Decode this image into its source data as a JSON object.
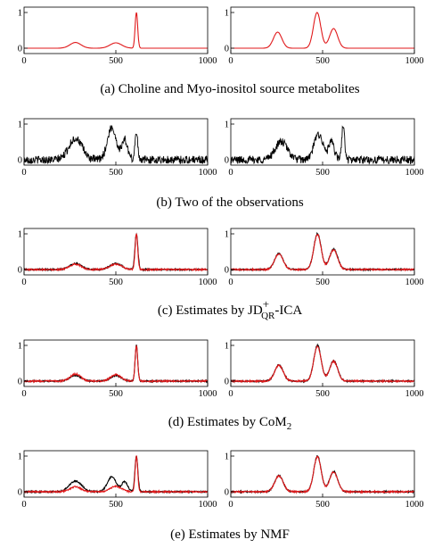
{
  "colors": {
    "source": "#e0191b",
    "observation": "#000000",
    "estimate": "#e0191b",
    "frame": "#000000"
  },
  "x_ticks": [
    "0",
    "500",
    "1000"
  ],
  "y_ticks": [
    "0",
    "1"
  ],
  "captions": {
    "a": "(a) Choline and Myo-inositol source metabolites",
    "b": "(b) Two of the observations",
    "c_prefix": "(c) Estimates by JD",
    "c_sup": "+",
    "c_sub": "QR",
    "c_suffix": "-ICA",
    "d_prefix": "(d) Estimates by CoM",
    "d_sub": "2",
    "e": "(e) Estimates by NMF"
  },
  "chart_data": [
    {
      "id": "a-left",
      "type": "line",
      "xlim": [
        0,
        1000
      ],
      "ylim": [
        0,
        1
      ],
      "noise": 0,
      "series": [
        {
          "color": "#e0191b",
          "peaks": [
            [
              280,
              0.16,
              30
            ],
            [
              500,
              0.15,
              32
            ],
            [
              612,
              1.0,
              7
            ]
          ]
        }
      ]
    },
    {
      "id": "a-right",
      "type": "line",
      "xlim": [
        0,
        1000
      ],
      "ylim": [
        0,
        1
      ],
      "noise": 0,
      "series": [
        {
          "color": "#e0191b",
          "peaks": [
            [
              255,
              0.45,
              23
            ],
            [
              470,
              1.0,
              20
            ],
            [
              560,
              0.55,
              22
            ]
          ]
        }
      ]
    },
    {
      "id": "b-left",
      "type": "line",
      "xlim": [
        0,
        1000
      ],
      "ylim": [
        0,
        1
      ],
      "noise": 0.11,
      "series": [
        {
          "color": "#000000",
          "peaks": [
            [
              280,
              0.6,
              36
            ],
            [
              478,
              0.9,
              24
            ],
            [
              548,
              0.55,
              16
            ],
            [
              612,
              0.72,
              8
            ]
          ]
        }
      ]
    },
    {
      "id": "b-right",
      "type": "line",
      "xlim": [
        0,
        1000
      ],
      "ylim": [
        0,
        1
      ],
      "noise": 0.11,
      "series": [
        {
          "color": "#000000",
          "peaks": [
            [
              275,
              0.5,
              34
            ],
            [
              478,
              0.72,
              24
            ],
            [
              548,
              0.48,
              16
            ],
            [
              612,
              0.95,
              8
            ]
          ]
        }
      ]
    },
    {
      "id": "c-left",
      "type": "line",
      "xlim": [
        0,
        1000
      ],
      "ylim": [
        0,
        1
      ],
      "noise": 0.02,
      "series": [
        {
          "color": "#000000",
          "peaks": [
            [
              280,
              0.17,
              32
            ],
            [
              500,
              0.17,
              32
            ],
            [
              612,
              1.0,
              8
            ]
          ]
        },
        {
          "color": "#e0191b",
          "peaks": [
            [
              280,
              0.15,
              30
            ],
            [
              500,
              0.15,
              32
            ],
            [
              612,
              1.0,
              7
            ]
          ]
        }
      ]
    },
    {
      "id": "c-right",
      "type": "line",
      "xlim": [
        0,
        1000
      ],
      "ylim": [
        0,
        1
      ],
      "noise": 0.02,
      "series": [
        {
          "color": "#000000",
          "peaks": [
            [
              262,
              0.45,
              23
            ],
            [
              472,
              1.0,
              20
            ],
            [
              560,
              0.57,
              22
            ]
          ]
        },
        {
          "color": "#e0191b",
          "peaks": [
            [
              262,
              0.44,
              23
            ],
            [
              472,
              0.98,
              20
            ],
            [
              560,
              0.55,
              22
            ]
          ]
        }
      ]
    },
    {
      "id": "d-left",
      "type": "line",
      "xlim": [
        0,
        1000
      ],
      "ylim": [
        0,
        1
      ],
      "noise": 0.02,
      "series": [
        {
          "color": "#000000",
          "peaks": [
            [
              280,
              0.16,
              30
            ],
            [
              500,
              0.15,
              30
            ],
            [
              612,
              1.0,
              7
            ]
          ]
        },
        {
          "color": "#e0191b",
          "peaks": [
            [
              280,
              0.2,
              28
            ],
            [
              500,
              0.18,
              28
            ],
            [
              612,
              1.0,
              7
            ]
          ]
        }
      ]
    },
    {
      "id": "d-right",
      "type": "line",
      "xlim": [
        0,
        1000
      ],
      "ylim": [
        0,
        1
      ],
      "noise": 0.02,
      "series": [
        {
          "color": "#000000",
          "peaks": [
            [
              262,
              0.45,
              23
            ],
            [
              472,
              1.0,
              20
            ],
            [
              560,
              0.57,
              22
            ]
          ]
        },
        {
          "color": "#e0191b",
          "peaks": [
            [
              262,
              0.44,
              23
            ],
            [
              472,
              0.98,
              20
            ],
            [
              560,
              0.55,
              22
            ]
          ]
        }
      ]
    },
    {
      "id": "e-left",
      "type": "line",
      "xlim": [
        0,
        1000
      ],
      "ylim": [
        0,
        1
      ],
      "noise": 0.02,
      "series": [
        {
          "color": "#000000",
          "peaks": [
            [
              280,
              0.3,
              34
            ],
            [
              478,
              0.42,
              24
            ],
            [
              548,
              0.28,
              16
            ],
            [
              612,
              1.0,
              8
            ]
          ]
        },
        {
          "color": "#e0191b",
          "peaks": [
            [
              280,
              0.14,
              30
            ],
            [
              500,
              0.15,
              32
            ],
            [
              612,
              1.0,
              7
            ]
          ]
        }
      ]
    },
    {
      "id": "e-right",
      "type": "line",
      "xlim": [
        0,
        1000
      ],
      "ylim": [
        0,
        1
      ],
      "noise": 0.02,
      "series": [
        {
          "color": "#000000",
          "peaks": [
            [
              262,
              0.45,
              23
            ],
            [
              472,
              1.0,
              20
            ],
            [
              560,
              0.57,
              22
            ]
          ]
        },
        {
          "color": "#e0191b",
          "peaks": [
            [
              262,
              0.44,
              23
            ],
            [
              472,
              0.98,
              20
            ],
            [
              560,
              0.55,
              22
            ]
          ]
        }
      ]
    }
  ]
}
